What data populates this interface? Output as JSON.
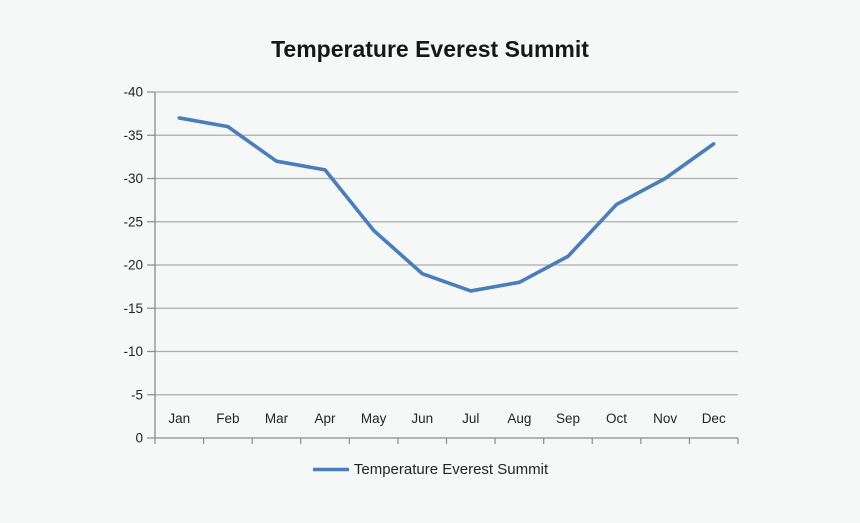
{
  "chart_data": {
    "type": "line",
    "title": "Temperature Everest Summit",
    "categories": [
      "Jan",
      "Feb",
      "Mar",
      "Apr",
      "May",
      "Jun",
      "Jul",
      "Aug",
      "Sep",
      "Oct",
      "Nov",
      "Dec"
    ],
    "series": [
      {
        "name": "Temperature Everest Summit",
        "values": [
          -37,
          -36,
          -32,
          -31,
          -24,
          -19,
          -17,
          -18,
          -21,
          -27,
          -30,
          -34
        ]
      }
    ],
    "xlabel": "",
    "ylabel": "",
    "ylim": [
      -40,
      0
    ],
    "y_axis_reversed": true,
    "y_ticks": [
      -40,
      -35,
      -30,
      -25,
      -20,
      -15,
      -10,
      -5,
      0
    ],
    "grid": true,
    "legend_position": "bottom"
  },
  "colors": {
    "line": "#4a7ebb",
    "gridline": "#adadad",
    "axis": "#8c8c8c",
    "tick_label": "#242424",
    "title": "#171717",
    "background": "#f6f7f7"
  }
}
